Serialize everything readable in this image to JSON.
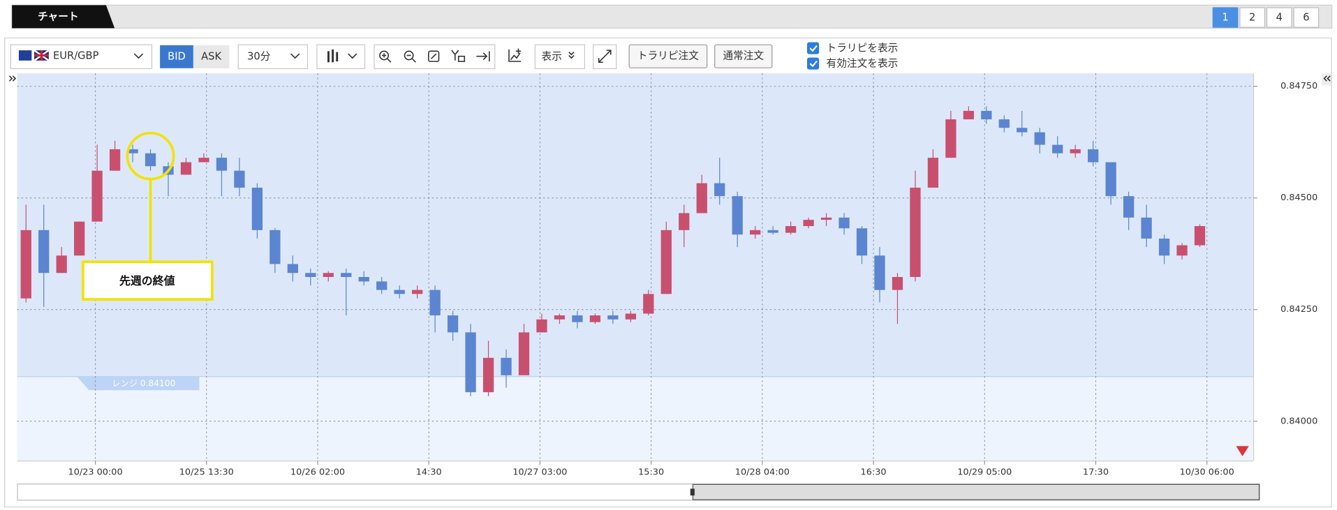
{
  "tab_title": "チャート",
  "page_buttons": [
    "1",
    "2",
    "4",
    "6"
  ],
  "toolbar": {
    "symbol": "EUR/GBP",
    "bid": "BID",
    "ask": "ASK",
    "timeframe": "30分",
    "display": "表示",
    "order_buttons": [
      "トラリピ注文",
      "通常注文"
    ],
    "checkboxes": [
      {
        "label": "トラリピを表示",
        "checked": true
      },
      {
        "label": "有効注文を表示",
        "checked": true
      }
    ]
  },
  "chart_data": {
    "type": "candlestick",
    "up_color": "#c8506e",
    "down_color": "#5b85d0",
    "ylim": [
      0.83912,
      0.84779
    ],
    "yticks": [
      {
        "value": 0.8475,
        "label": "0.84750"
      },
      {
        "value": 0.845,
        "label": "0.84500"
      },
      {
        "value": 0.8425,
        "label": "0.84250"
      },
      {
        "value": 0.84,
        "label": "0.84000"
      }
    ],
    "xlim": [
      -0.5,
      69
    ],
    "xticks": [
      {
        "value": 3.9,
        "label": "10/23 00:00"
      },
      {
        "value": 10.15,
        "label": "10/25 13:30"
      },
      {
        "value": 16.4,
        "label": "10/26 02:00"
      },
      {
        "value": 22.65,
        "label": "14:30"
      },
      {
        "value": 28.9,
        "label": "10/27 03:00"
      },
      {
        "value": 35.15,
        "label": "15:30"
      },
      {
        "value": 41.4,
        "label": "10/28 04:00"
      },
      {
        "value": 47.65,
        "label": "16:30"
      },
      {
        "value": 53.9,
        "label": "10/29 05:00"
      },
      {
        "value": 60.15,
        "label": "17:30"
      },
      {
        "value": 66.4,
        "label": "10/30 06:00"
      }
    ],
    "grid": true,
    "range": {
      "value": 0.841,
      "label": "レンジ 0.84100"
    },
    "annotation": {
      "text": "先週の終値",
      "candle": 7
    },
    "candles": [
      [
        0.84275,
        0.84485,
        0.84266,
        0.84428
      ],
      [
        0.84428,
        0.84485,
        0.84256,
        0.84332
      ],
      [
        0.84332,
        0.8439,
        0.84332,
        0.84371
      ],
      [
        0.84371,
        0.84447,
        0.84371,
        0.84447
      ],
      [
        0.84447,
        0.84619,
        0.84447,
        0.84561
      ],
      [
        0.84561,
        0.84628,
        0.84561,
        0.84609
      ],
      [
        0.84609,
        0.84619,
        0.8458,
        0.846
      ],
      [
        0.846,
        0.84609,
        0.84561,
        0.84571
      ],
      [
        0.84571,
        0.8458,
        0.84504,
        0.84552
      ],
      [
        0.84552,
        0.8459,
        0.84552,
        0.8458
      ],
      [
        0.8458,
        0.846,
        0.8458,
        0.8459
      ],
      [
        0.8459,
        0.846,
        0.84504,
        0.84561
      ],
      [
        0.84561,
        0.8459,
        0.84504,
        0.84523
      ],
      [
        0.84523,
        0.84533,
        0.84409,
        0.84428
      ],
      [
        0.84428,
        0.84432,
        0.84332,
        0.84352
      ],
      [
        0.84352,
        0.84371,
        0.84313,
        0.84332
      ],
      [
        0.84332,
        0.84342,
        0.84304,
        0.84323
      ],
      [
        0.84323,
        0.84336,
        0.84313,
        0.84332
      ],
      [
        0.84332,
        0.84342,
        0.84237,
        0.84323
      ],
      [
        0.84323,
        0.84336,
        0.84304,
        0.84313
      ],
      [
        0.84313,
        0.84323,
        0.84285,
        0.84294
      ],
      [
        0.84294,
        0.84304,
        0.84275,
        0.84285
      ],
      [
        0.84285,
        0.84304,
        0.84275,
        0.84294
      ],
      [
        0.84294,
        0.84304,
        0.84199,
        0.84237
      ],
      [
        0.84237,
        0.84247,
        0.8418,
        0.84199
      ],
      [
        0.84199,
        0.84218,
        0.84056,
        0.84065
      ],
      [
        0.84065,
        0.8418,
        0.84056,
        0.84142
      ],
      [
        0.84142,
        0.84161,
        0.84075,
        0.84103
      ],
      [
        0.84103,
        0.84218,
        0.84103,
        0.84199
      ],
      [
        0.84199,
        0.84241,
        0.84199,
        0.84228
      ],
      [
        0.84228,
        0.84241,
        0.84218,
        0.84237
      ],
      [
        0.84237,
        0.84247,
        0.84208,
        0.84222
      ],
      [
        0.84222,
        0.84241,
        0.84218,
        0.84237
      ],
      [
        0.84237,
        0.84247,
        0.84218,
        0.84228
      ],
      [
        0.84228,
        0.84247,
        0.84222,
        0.84241
      ],
      [
        0.84241,
        0.84294,
        0.84237,
        0.84285
      ],
      [
        0.84285,
        0.84447,
        0.84285,
        0.84428
      ],
      [
        0.84428,
        0.84485,
        0.8439,
        0.84466
      ],
      [
        0.84466,
        0.84552,
        0.84466,
        0.84533
      ],
      [
        0.84533,
        0.8459,
        0.84485,
        0.84504
      ],
      [
        0.84504,
        0.84514,
        0.8439,
        0.84418
      ],
      [
        0.84418,
        0.84437,
        0.84409,
        0.84428
      ],
      [
        0.84428,
        0.84437,
        0.84418,
        0.84422
      ],
      [
        0.84422,
        0.84447,
        0.84418,
        0.84437
      ],
      [
        0.84437,
        0.84456,
        0.84432,
        0.84451
      ],
      [
        0.84451,
        0.84466,
        0.84437,
        0.84456
      ],
      [
        0.84456,
        0.84466,
        0.84418,
        0.84432
      ],
      [
        0.84432,
        0.84437,
        0.84352,
        0.84371
      ],
      [
        0.84371,
        0.8439,
        0.84266,
        0.84294
      ],
      [
        0.84294,
        0.84332,
        0.84218,
        0.84323
      ],
      [
        0.84323,
        0.84561,
        0.84313,
        0.84523
      ],
      [
        0.84523,
        0.84609,
        0.84523,
        0.8459
      ],
      [
        0.8459,
        0.84695,
        0.8459,
        0.84676
      ],
      [
        0.84676,
        0.84705,
        0.84676,
        0.84695
      ],
      [
        0.84695,
        0.84705,
        0.84666,
        0.84676
      ],
      [
        0.84676,
        0.84685,
        0.84647,
        0.84657
      ],
      [
        0.84657,
        0.84695,
        0.84638,
        0.84647
      ],
      [
        0.84647,
        0.84657,
        0.846,
        0.84619
      ],
      [
        0.84619,
        0.84638,
        0.8459,
        0.846
      ],
      [
        0.846,
        0.84619,
        0.8459,
        0.84609
      ],
      [
        0.84609,
        0.84628,
        0.84571,
        0.8458
      ],
      [
        0.8458,
        0.8458,
        0.84485,
        0.84504
      ],
      [
        0.84504,
        0.84514,
        0.84428,
        0.84456
      ],
      [
        0.84456,
        0.84485,
        0.8439,
        0.84409
      ],
      [
        0.84409,
        0.84418,
        0.84352,
        0.84371
      ],
      [
        0.84371,
        0.84399,
        0.84362,
        0.84394
      ],
      [
        0.84394,
        0.84441,
        0.8439,
        0.84437
      ]
    ]
  }
}
